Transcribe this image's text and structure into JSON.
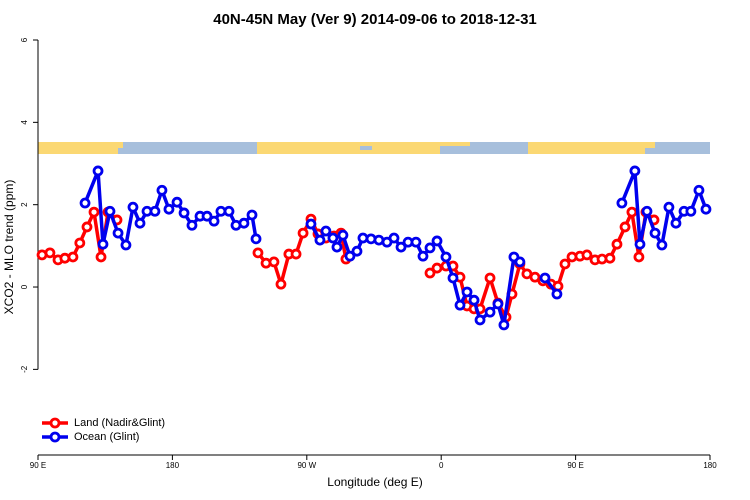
{
  "chart_data": {
    "type": "line",
    "title": "40N-45N May (Ver 9)   2014-09-06 to 2018-12-31",
    "x_label": "Longitude (deg E)",
    "y_label": "XCO2 - MLO trend (ppm)",
    "xlim": [
      90,
      540
    ],
    "xticks": [
      {
        "value": 90,
        "label": "90 E"
      },
      {
        "value": 180,
        "label": "180"
      },
      {
        "value": 270,
        "label": "90 W"
      },
      {
        "value": 360,
        "label": "0"
      },
      {
        "value": 450,
        "label": "90 E"
      },
      {
        "value": 540,
        "label": "180"
      }
    ],
    "ylim": [
      -4.08,
      6
    ],
    "yticks": [
      -2,
      0,
      2,
      4,
      6
    ],
    "legend": "bottom-left",
    "series": [
      {
        "name": "Land (Nadir&Glint)",
        "color": "#ff0000",
        "x": [
          92.7,
          98,
          103.4,
          108,
          113.4,
          118,
          122.8,
          127.5,
          132.2,
          136.9,
          142.9,
          null,
          237.3,
          242.7,
          248,
          252.7,
          258,
          262.8,
          267.5,
          272.8,
          277.5,
          282.8,
          288.2,
          292.9,
          296.2,
          null,
          352.5,
          357.2,
          363.2,
          367.9,
          372.6,
          377.3,
          382,
          386,
          392.7,
          398,
          403.4,
          407.4,
          412.7,
          417.4,
          422.8,
          428.1,
          433.5,
          438.2,
          442.9,
          447.6,
          452.9,
          457.6,
          463,
          467.7,
          473,
          477.7,
          483.1,
          487.7,
          492.4,
          497.1,
          502.5
        ],
        "values": [
          0.78,
          0.83,
          0.66,
          0.7,
          0.73,
          1.07,
          1.46,
          1.82,
          0.73,
          1.82,
          1.63,
          null,
          0.83,
          0.58,
          0.61,
          0.07,
          0.8,
          0.8,
          1.31,
          1.65,
          1.29,
          1.19,
          1.24,
          1.31,
          0.68,
          null,
          0.34,
          0.46,
          0.51,
          0.51,
          0.24,
          -0.46,
          -0.53,
          -0.53,
          0.22,
          -0.39,
          -0.73,
          -0.17,
          0.56,
          0.32,
          0.24,
          0.15,
          0.07,
          0.02,
          0.56,
          0.73,
          0.75,
          0.78,
          0.66,
          0.68,
          0.7,
          1.04,
          1.46,
          1.82,
          0.73,
          1.82,
          1.63
        ]
      },
      {
        "name": "Ocean (Glint)",
        "color": "#0000ee",
        "x": [
          121.5,
          130.2,
          133.5,
          138.2,
          143.6,
          148.9,
          153.6,
          158.3,
          163,
          168.3,
          173,
          177.7,
          183.1,
          187.8,
          193.1,
          198.5,
          203.2,
          207.9,
          212.5,
          217.9,
          222.6,
          227.9,
          233.3,
          236,
          null,
          272.8,
          278.8,
          282.8,
          287.5,
          290.2,
          294.2,
          298.9,
          303.6,
          307.6,
          313,
          318.3,
          323.7,
          328.4,
          333.1,
          337.8,
          343.1,
          347.8,
          352.5,
          357.2,
          363.2,
          367.9,
          372.6,
          377.3,
          382,
          386,
          392.7,
          398,
          402,
          408.7,
          412.7,
          null,
          429.5,
          437.5,
          null,
          481,
          489.7,
          493.1,
          497.8,
          503.2,
          507.8,
          512.5,
          517.2,
          522.6,
          527.2,
          532.6,
          537.3
        ],
        "values": [
          2.04,
          2.82,
          1.04,
          1.84,
          1.31,
          1.02,
          1.94,
          1.55,
          1.84,
          1.84,
          2.35,
          1.89,
          2.06,
          1.8,
          1.5,
          1.72,
          1.72,
          1.6,
          1.84,
          1.84,
          1.5,
          1.55,
          1.75,
          1.17,
          null,
          1.53,
          1.14,
          1.36,
          1.19,
          0.97,
          1.26,
          0.75,
          0.87,
          1.19,
          1.17,
          1.14,
          1.09,
          1.19,
          0.97,
          1.09,
          1.09,
          0.75,
          0.95,
          1.12,
          0.73,
          0.22,
          -0.44,
          -0.12,
          -0.32,
          -0.8,
          -0.61,
          -0.41,
          -0.92,
          0.73,
          0.61,
          null,
          0.22,
          -0.17,
          null,
          2.04,
          2.82,
          1.04,
          1.84,
          1.31,
          1.02,
          1.94,
          1.55,
          1.84,
          1.84,
          2.35,
          1.89
        ]
      }
    ]
  }
}
